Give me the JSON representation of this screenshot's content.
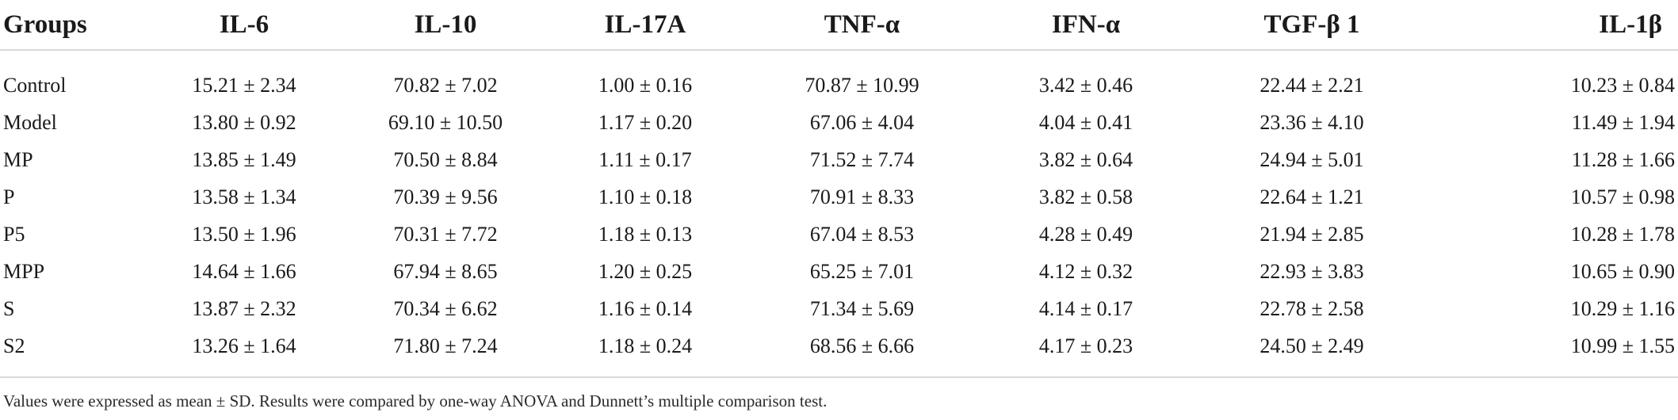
{
  "table": {
    "headers": [
      "Groups",
      "IL-6",
      "IL-10",
      "IL-17A",
      "TNF-α",
      "IFN-α",
      "TGF-β 1",
      "IL-1β"
    ],
    "rows": [
      [
        "Control",
        "15.21 ± 2.34",
        "70.82 ± 7.02",
        "1.00 ± 0.16",
        "70.87 ± 10.99",
        "3.42 ± 0.46",
        "22.44 ± 2.21",
        "10.23 ± 0.84"
      ],
      [
        "Model",
        "13.80 ± 0.92",
        "69.10 ± 10.50",
        "1.17 ± 0.20",
        "67.06 ± 4.04",
        "4.04 ± 0.41",
        "23.36 ± 4.10",
        "11.49 ± 1.94"
      ],
      [
        "MP",
        "13.85 ± 1.49",
        "70.50 ± 8.84",
        "1.11 ± 0.17",
        "71.52 ± 7.74",
        "3.82 ± 0.64",
        "24.94 ± 5.01",
        "11.28 ± 1.66"
      ],
      [
        "P",
        "13.58 ± 1.34",
        "70.39 ± 9.56",
        "1.10 ± 0.18",
        "70.91 ± 8.33",
        "3.82 ± 0.58",
        "22.64 ± 1.21",
        "10.57 ± 0.98"
      ],
      [
        "P5",
        "13.50 ± 1.96",
        "70.31 ± 7.72",
        "1.18 ± 0.13",
        "67.04 ± 8.53",
        "4.28 ± 0.49",
        "21.94 ± 2.85",
        "10.28 ± 1.78"
      ],
      [
        "MPP",
        "14.64 ± 1.66",
        "67.94 ± 8.65",
        "1.20 ± 0.25",
        "65.25 ± 7.01",
        "4.12 ± 0.32",
        "22.93 ± 3.83",
        "10.65 ± 0.90"
      ],
      [
        "S",
        "13.87 ± 2.32",
        "70.34 ± 6.62",
        "1.16 ± 0.14",
        "71.34 ± 5.69",
        "4.14 ± 0.17",
        "22.78 ± 2.58",
        "10.29 ± 1.16"
      ],
      [
        "S2",
        "13.26 ± 1.64",
        "71.80 ± 7.24",
        "1.18 ± 0.24",
        "68.56 ± 6.66",
        "4.17 ± 0.23",
        "24.50 ± 2.49",
        "10.99 ± 1.55"
      ]
    ]
  },
  "footnote": "Values were expressed as mean ± SD. Results were compared by one-way ANOVA and Dunnett’s multiple comparison test.",
  "colors": {
    "text": "#1a1a1a",
    "rule": "#d9d9d9"
  }
}
